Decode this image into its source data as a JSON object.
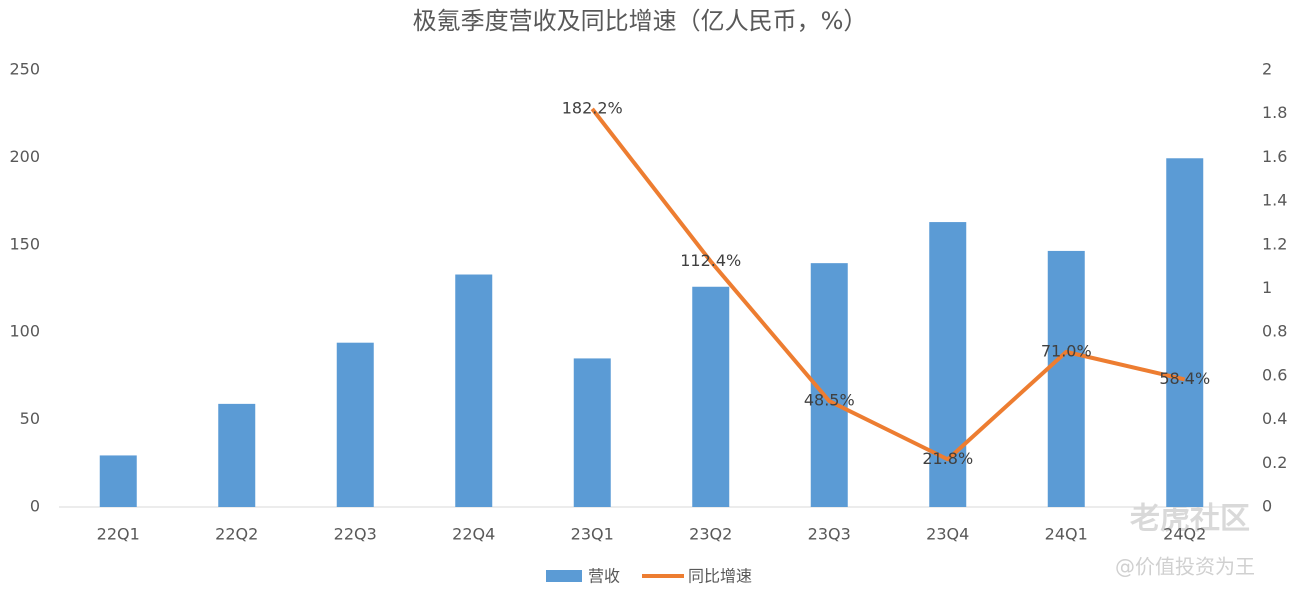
{
  "chart_data": {
    "type": "bar",
    "title": "极氪季度营收及同比增速（亿人民币，%）",
    "categories": [
      "22Q1",
      "22Q2",
      "22Q3",
      "22Q4",
      "23Q1",
      "23Q2",
      "23Q3",
      "23Q4",
      "24Q1",
      "24Q2"
    ],
    "series": [
      {
        "name": "营收",
        "type": "bar",
        "color": "#5b9bd5",
        "values": [
          29.5,
          59,
          94,
          133,
          85,
          126,
          139.5,
          163,
          146.5,
          199.5
        ]
      },
      {
        "name": "同比增速",
        "type": "line",
        "axis": "y2",
        "color": "#ed7d31",
        "values": [
          null,
          null,
          null,
          null,
          1.822,
          1.124,
          0.485,
          0.218,
          0.71,
          0.584
        ],
        "value_labels": [
          null,
          null,
          null,
          null,
          "182.2%",
          "112.4%",
          "48.5%",
          "21.8%",
          "71.0%",
          "58.4%"
        ]
      }
    ],
    "ylim": [
      0,
      250
    ],
    "yticks": [
      0,
      50,
      100,
      150,
      200,
      250
    ],
    "y2lim": [
      0,
      2
    ],
    "y2ticks": [
      0,
      0.2,
      0.4,
      0.6,
      0.8,
      1,
      1.2,
      1.4,
      1.6,
      1.8,
      2
    ],
    "legend": "bottom",
    "watermark": [
      "老虎社区",
      "@价值投资为王"
    ]
  }
}
